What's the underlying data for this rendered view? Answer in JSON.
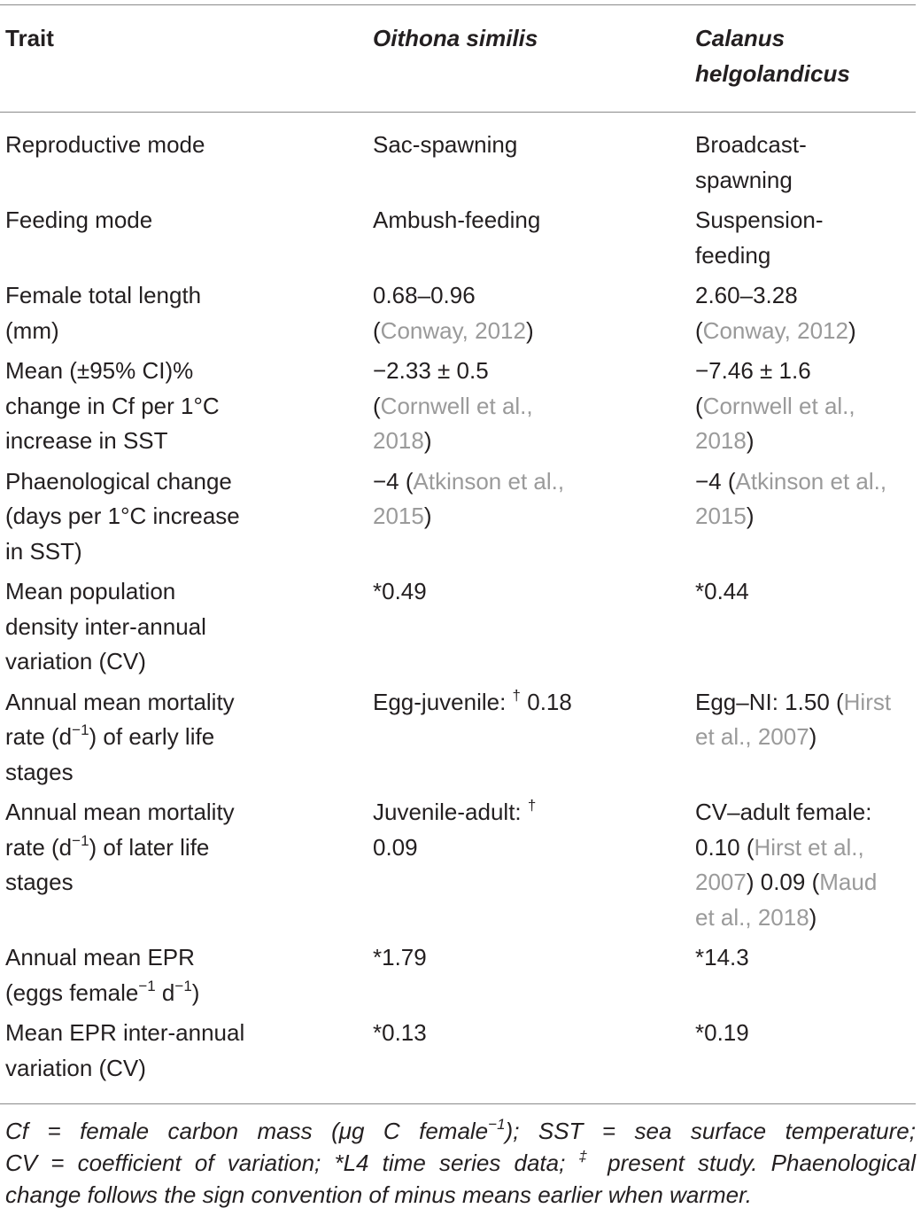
{
  "header": {
    "trait": "Trait",
    "species1": "Oithona similis",
    "species2_l1": "Calanus",
    "species2_l2": "helgolandicus"
  },
  "rows": [
    {
      "trait": [
        "Reproductive mode"
      ],
      "os": {
        "l1": "Sac-spawning"
      },
      "ch": {
        "l1": "Broadcast-",
        "l2": "spawning"
      }
    },
    {
      "trait": [
        "Feeding mode"
      ],
      "os": {
        "l1": "Ambush-feeding"
      },
      "ch": {
        "l1": "Suspension-",
        "l2": "feeding"
      }
    },
    {
      "trait": [
        "Female total length",
        "(mm)"
      ],
      "os": {
        "l1": "0.68–0.96",
        "ref1": "Conway, 2012"
      },
      "ch": {
        "l1": "2.60–3.28",
        "ref1": "Conway, 2012"
      }
    },
    {
      "trait": [
        "Mean (±95% CI)%",
        "change in Cf per 1°C",
        "increase in SST"
      ],
      "os": {
        "l1": "−2.33 ± 0.5",
        "ref1": "Cornwell et al.,",
        "ref2": "2018"
      },
      "ch": {
        "l1": "−7.46 ± 1.6",
        "ref1": "Cornwell et al.,",
        "ref2": "2018"
      }
    },
    {
      "trait": [
        "Phaenological change",
        "(days per 1°C increase",
        "in SST)"
      ],
      "os": {
        "val": "−4",
        "ref1": "Atkinson et al.,",
        "ref2": "2015"
      },
      "ch": {
        "val": "−4",
        "ref1": "Atkinson et al.,",
        "ref2": "2015"
      }
    },
    {
      "trait": [
        "Mean population",
        "density inter-annual",
        "variation (CV)"
      ],
      "os": {
        "l1": "*0.49"
      },
      "ch": {
        "l1": "*0.44"
      }
    },
    {
      "trait_pre": "Annual mean mortality",
      "trait_rate": "rate (d",
      "trait_sup": "−1",
      "trait_post": ") of early life",
      "trait_l3": "stages",
      "os": {
        "text": "Egg-juvenile: ",
        "sup": "†",
        "val": " 0.18"
      },
      "ch": {
        "text": "Egg–NI: 1.50 (",
        "ref1": "Hirst",
        "ref2": "et al., 2007"
      }
    },
    {
      "trait_pre": "Annual mean mortality",
      "trait_rate": "rate (d",
      "trait_sup": "−1",
      "trait_post": ") of later life",
      "trait_l3": "stages",
      "os": {
        "text": "Juvenile-adult: ",
        "sup": "†",
        "val": "0.09"
      },
      "ch": {
        "l1": "CV–adult female:",
        "val1": "0.10",
        "ref1": "Hirst et al.,",
        "ref2": "2007",
        "val2": "0.09",
        "ref3": "Maud",
        "ref4": "et al., 2018"
      }
    },
    {
      "trait_l1": "Annual mean EPR",
      "trait_a": "(eggs female",
      "trait_sup1": "−1",
      "trait_b": " d",
      "trait_sup2": "−1",
      "trait_c": ")",
      "os": {
        "l1": "*1.79"
      },
      "ch": {
        "l1": "*14.3"
      }
    },
    {
      "trait": [
        "Mean EPR inter-annual",
        "variation (CV)"
      ],
      "os": {
        "l1": "*0.13"
      },
      "ch": {
        "l1": "*0.19"
      }
    }
  ],
  "footnote": {
    "l1a": "Cf = female carbon mass (μg C female",
    "l1sup": "−1",
    "l1b": "); SST = sea surface temperature;",
    "l2a": "CV = coefficient of variation; *L4 time series data; ",
    "l2sup": "‡",
    "l2b": " present study. Phaenological",
    "l3": "change follows the sign convention of minus means earlier when warmer."
  }
}
